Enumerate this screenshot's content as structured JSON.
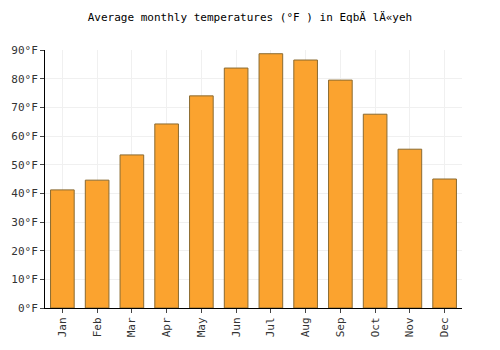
{
  "chart_data": {
    "type": "bar",
    "title": "Average monthly temperatures (°F ) in EqbÄ lÄ«yeh",
    "categories": [
      "Jan",
      "Feb",
      "Mar",
      "Apr",
      "May",
      "Jun",
      "Jul",
      "Aug",
      "Sep",
      "Oct",
      "Nov",
      "Dec"
    ],
    "values": [
      41.2,
      44.6,
      53.4,
      64.2,
      74.0,
      83.7,
      88.7,
      86.5,
      79.5,
      67.6,
      55.4,
      45.0
    ],
    "color": "#fba32f",
    "ylim": [
      0,
      90
    ],
    "yticks": [
      {
        "value": 0,
        "label": "0°F"
      },
      {
        "value": 10,
        "label": "10°F"
      },
      {
        "value": 20,
        "label": "20°F"
      },
      {
        "value": 30,
        "label": "30°F"
      },
      {
        "value": 40,
        "label": "40°F"
      },
      {
        "value": 50,
        "label": "50°F"
      },
      {
        "value": 60,
        "label": "60°F"
      },
      {
        "value": 70,
        "label": "70°F"
      },
      {
        "value": 80,
        "label": "80°F"
      },
      {
        "value": 90,
        "label": "90°F"
      }
    ],
    "grid": true
  }
}
